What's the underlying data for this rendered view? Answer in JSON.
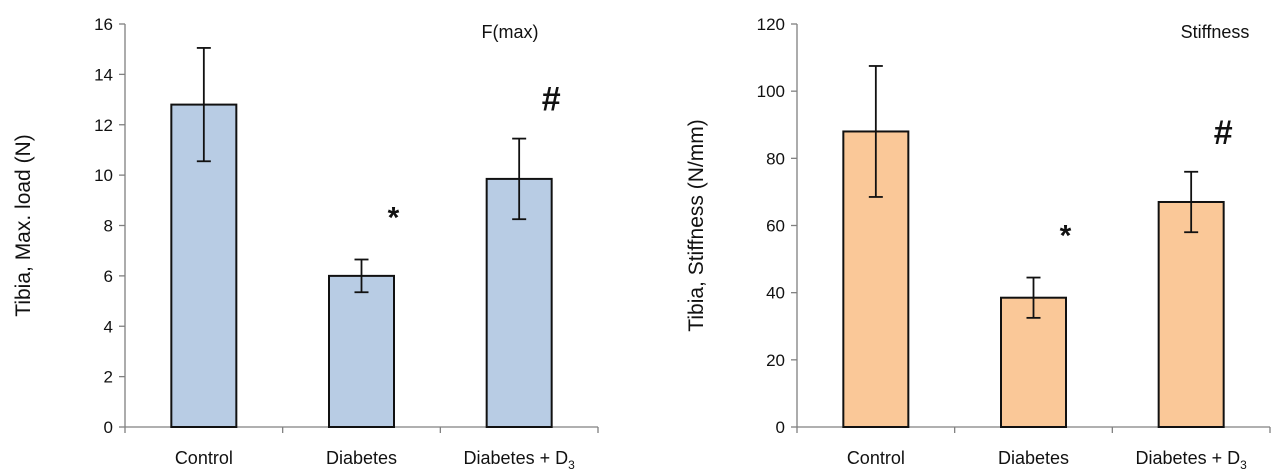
{
  "chart_data": [
    {
      "type": "bar",
      "title": "F(max)",
      "ylabel": "Tibia, Max. load (N)",
      "xlabel": "",
      "ylim": [
        0,
        16
      ],
      "yticks": [
        0,
        2,
        4,
        6,
        8,
        10,
        12,
        14,
        16
      ],
      "categories": [
        {
          "label": "Control",
          "sub": ""
        },
        {
          "label": "Diabetes",
          "sub": ""
        },
        {
          "label": "Diabetes + D",
          "sub": "3"
        }
      ],
      "values": [
        12.8,
        6.0,
        9.85
      ],
      "errors": [
        2.25,
        0.65,
        1.6
      ],
      "markers": [
        "",
        "*",
        "#"
      ],
      "bar_color": "#b8cce4",
      "grid": false
    },
    {
      "type": "bar",
      "title": "Stiffness",
      "ylabel": "Tibia, Stiffness (N/mm)",
      "xlabel": "",
      "ylim": [
        0,
        120
      ],
      "yticks": [
        0,
        20,
        40,
        60,
        80,
        100,
        120
      ],
      "categories": [
        {
          "label": "Control",
          "sub": ""
        },
        {
          "label": "Diabetes",
          "sub": ""
        },
        {
          "label": "Diabetes + D",
          "sub": "3"
        }
      ],
      "values": [
        88,
        38.5,
        67
      ],
      "errors": [
        19.5,
        6,
        9
      ],
      "markers": [
        "",
        "*",
        "#"
      ],
      "bar_color": "#fac898",
      "grid": false
    }
  ]
}
